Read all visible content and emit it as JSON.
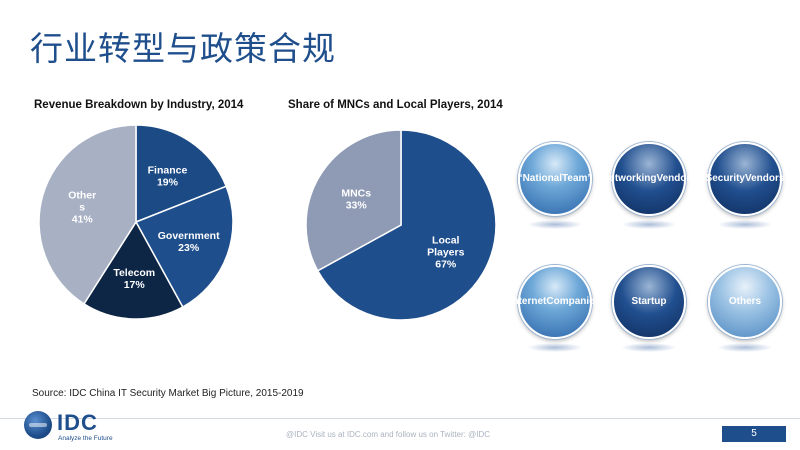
{
  "title": "行业转型与政策合规",
  "chart_data": [
    {
      "type": "pie",
      "title": "Revenue Breakdown by Industry, 2014",
      "slices": [
        {
          "label_lines": [
            "Finance",
            "19%"
          ],
          "value": 19,
          "color": "#1b4a85"
        },
        {
          "label_lines": [
            "Government",
            "23%"
          ],
          "value": 23,
          "color": "#1f4e8c"
        },
        {
          "label_lines": [
            "Telecom",
            "17%"
          ],
          "value": 17,
          "color": "#0e2646"
        },
        {
          "label_lines": [
            "Other",
            "s",
            "41%"
          ],
          "value": 41,
          "color": "#a8b1c4"
        }
      ]
    },
    {
      "type": "pie",
      "title": "Share of MNCs  and Local Players, 2014",
      "slices": [
        {
          "label_lines": [
            "Local",
            "Players",
            "67%"
          ],
          "value": 67,
          "color": "#1f4e8c"
        },
        {
          "label_lines": [
            "MNCs",
            "33%"
          ],
          "value": 33,
          "color": "#8f9bb5"
        }
      ]
    }
  ],
  "bubbles": [
    {
      "label_lines": [
        "“National",
        "Team”"
      ],
      "style": "light"
    },
    {
      "label_lines": [
        "Networking",
        "Vendors"
      ],
      "style": "dark"
    },
    {
      "label_lines": [
        "Security",
        "Vendors"
      ],
      "style": "dark"
    },
    {
      "label_lines": [
        "Internet",
        "Companies"
      ],
      "style": "light"
    },
    {
      "label_lines": [
        "Startup"
      ],
      "style": "dark"
    },
    {
      "label_lines": [
        "Others"
      ],
      "style": "pale"
    }
  ],
  "source": "Source:  IDC China IT Security Market Big Picture, 2015-2019",
  "logo": {
    "text": "IDC",
    "tagline": "Analyze the Future"
  },
  "footer": "@IDC    Visit us at IDC.com and follow us on Twitter: @IDC",
  "page_number": "5"
}
